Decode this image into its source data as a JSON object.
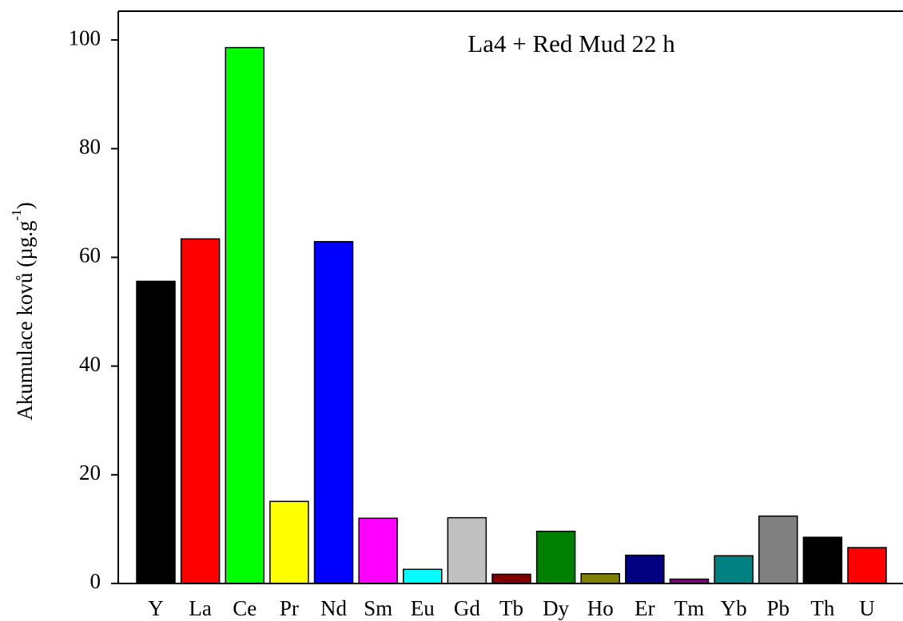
{
  "chart_data": {
    "type": "bar",
    "title": "La4 + Red Mud 22 h",
    "y_label": {
      "text": "Akumulace kovů (µg.g",
      "superscript": "-1",
      "suffix": ")"
    },
    "categories": [
      "Y",
      "La",
      "Ce",
      "Pr",
      "Nd",
      "Sm",
      "Eu",
      "Gd",
      "Tb",
      "Dy",
      "Ho",
      "Er",
      "Tm",
      "Yb",
      "Pb",
      "Th",
      "U"
    ],
    "values": [
      55.6,
      63.4,
      98.6,
      15.1,
      62.9,
      12.0,
      2.6,
      12.1,
      1.7,
      9.6,
      1.8,
      5.2,
      0.8,
      5.1,
      12.4,
      8.5,
      6.6
    ],
    "colors": [
      "#000000",
      "#ff0000",
      "#00ff00",
      "#ffff00",
      "#0000ff",
      "#ff00ff",
      "#00ffff",
      "#c0c0c0",
      "#800000",
      "#008000",
      "#808000",
      "#000080",
      "#800080",
      "#008080",
      "#808080",
      "#000000",
      "#ff0000"
    ],
    "ylim": [
      0,
      105.3
    ],
    "yticks": [
      0,
      20,
      40,
      60,
      80,
      100
    ],
    "grid": false
  }
}
